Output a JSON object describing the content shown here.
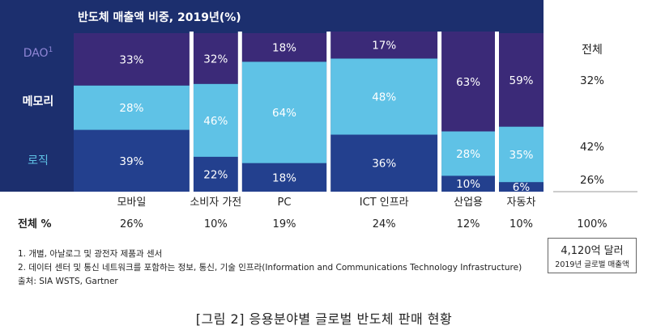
{
  "chart_data": {
    "type": "bar",
    "stacked": true,
    "variable_width": true,
    "title": "반도체 매출액 비중, 2019년(%)",
    "categories": [
      "모바일",
      "소비자 가전",
      "PC",
      "ICT 인프라",
      "산업용",
      "자동차"
    ],
    "category_shares": [
      26,
      10,
      19,
      24,
      12,
      10
    ],
    "series": [
      {
        "name": "메모리",
        "color": "#23408e",
        "values": [
          39,
          22,
          18,
          36,
          10,
          6
        ]
      },
      {
        "name": "로직",
        "color": "#5fc2e6",
        "values": [
          28,
          46,
          64,
          48,
          28,
          35
        ]
      },
      {
        "name": "DAO",
        "superscript": "1",
        "color": "#3b2a78",
        "values": [
          33,
          32,
          18,
          17,
          63,
          59
        ]
      }
    ],
    "total_column": {
      "header": "전체",
      "values": [
        26,
        42,
        32
      ],
      "share_label": "100%"
    },
    "row_label": "전체 %",
    "ylim": [
      0,
      100
    ]
  },
  "labels": {
    "title": "반도체 매출액 비중, 2019년(%)",
    "row_label": "전체 %",
    "total_header": "전체",
    "total_share": "100%",
    "total_amount": "4,120억 달러",
    "total_amount_sub": "2019년 글로벌 매출액",
    "note1": "1. 개별, 아날로그 및 광전자 제품과 센서",
    "note2": "2. 데이터 센터 및 통신 네트워크를 포함하는 정보, 통신, 기술 인프라(Information and Communications Technology Infrastructure)",
    "source": "출처: SIA WSTS, Gartner",
    "caption": "[그림 2] 응용분야별 글로벌 반도체 판매 현황"
  }
}
